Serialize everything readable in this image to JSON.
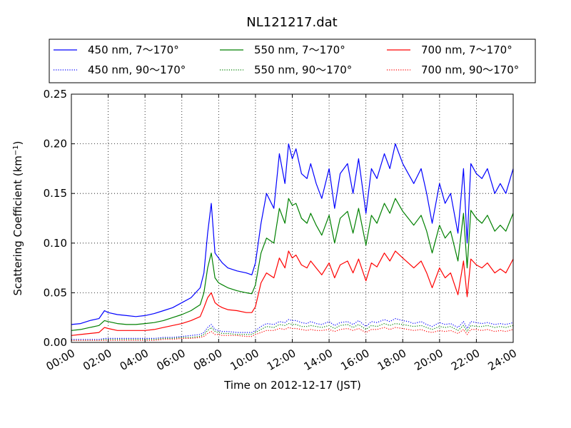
{
  "chart_data": {
    "type": "line",
    "title": "NL121217.dat",
    "xlabel": "Time on 2012-12-17 (JST)",
    "ylabel": "Scattering Coefficient (km",
    "ylabel_sup": "−1",
    "ylabel_close": ")",
    "x_unit": "hour",
    "xlim": [
      0,
      24
    ],
    "ylim": [
      0,
      0.25
    ],
    "xticks": [
      0,
      2,
      4,
      6,
      8,
      10,
      12,
      14,
      16,
      18,
      20,
      22,
      24
    ],
    "xtick_labels": [
      "00:00",
      "02:00",
      "04:00",
      "06:00",
      "08:00",
      "10:00",
      "12:00",
      "14:00",
      "16:00",
      "18:00",
      "20:00",
      "22:00",
      "24:00"
    ],
    "yticks": [
      0,
      0.05,
      0.1,
      0.15,
      0.2,
      0.25
    ],
    "ytick_labels": [
      "0.00",
      "0.05",
      "0.10",
      "0.15",
      "0.20",
      "0.25"
    ],
    "grid": true,
    "legend_position": "top",
    "x": [
      0,
      0.5,
      1,
      1.5,
      1.8,
      2,
      2.5,
      3,
      3.5,
      4,
      4.5,
      5,
      5.5,
      6,
      6.5,
      7,
      7.2,
      7.4,
      7.6,
      7.8,
      8,
      8.2,
      8.5,
      9,
      9.5,
      9.8,
      10,
      10.3,
      10.6,
      11,
      11.3,
      11.6,
      11.8,
      12,
      12.2,
      12.5,
      12.8,
      13,
      13.3,
      13.6,
      14,
      14.3,
      14.6,
      15,
      15.3,
      15.6,
      16,
      16.3,
      16.6,
      17,
      17.3,
      17.6,
      18,
      18.3,
      18.6,
      19,
      19.3,
      19.6,
      20,
      20.3,
      20.6,
      21,
      21.3,
      21.5,
      21.7,
      22,
      22.3,
      22.6,
      23,
      23.3,
      23.6,
      24
    ],
    "series": [
      {
        "name": "450 nm, 7～170°",
        "color": "#0000ff",
        "linestyle": "solid",
        "values": [
          0.018,
          0.019,
          0.022,
          0.024,
          0.032,
          0.03,
          0.028,
          0.027,
          0.026,
          0.027,
          0.029,
          0.032,
          0.035,
          0.04,
          0.045,
          0.055,
          0.07,
          0.11,
          0.14,
          0.09,
          0.085,
          0.08,
          0.075,
          0.072,
          0.07,
          0.068,
          0.08,
          0.12,
          0.15,
          0.135,
          0.19,
          0.16,
          0.2,
          0.185,
          0.195,
          0.17,
          0.165,
          0.18,
          0.16,
          0.145,
          0.175,
          0.135,
          0.17,
          0.18,
          0.15,
          0.185,
          0.13,
          0.175,
          0.165,
          0.19,
          0.175,
          0.2,
          0.18,
          0.17,
          0.16,
          0.175,
          0.15,
          0.12,
          0.16,
          0.14,
          0.15,
          0.11,
          0.175,
          0.1,
          0.18,
          0.17,
          0.165,
          0.175,
          0.15,
          0.16,
          0.15,
          0.175
        ]
      },
      {
        "name": "550 nm, 7～170°",
        "color": "#008000",
        "linestyle": "solid",
        "values": [
          0.012,
          0.013,
          0.015,
          0.017,
          0.022,
          0.021,
          0.019,
          0.018,
          0.018,
          0.019,
          0.02,
          0.022,
          0.025,
          0.028,
          0.032,
          0.038,
          0.05,
          0.075,
          0.09,
          0.065,
          0.06,
          0.058,
          0.055,
          0.052,
          0.05,
          0.049,
          0.058,
          0.09,
          0.105,
          0.1,
          0.135,
          0.12,
          0.145,
          0.138,
          0.14,
          0.125,
          0.12,
          0.13,
          0.118,
          0.108,
          0.128,
          0.1,
          0.125,
          0.132,
          0.11,
          0.135,
          0.098,
          0.128,
          0.12,
          0.14,
          0.13,
          0.145,
          0.132,
          0.125,
          0.118,
          0.128,
          0.112,
          0.09,
          0.118,
          0.105,
          0.112,
          0.082,
          0.13,
          0.075,
          0.133,
          0.125,
          0.12,
          0.128,
          0.112,
          0.118,
          0.112,
          0.13
        ]
      },
      {
        "name": "700 nm, 7～170°",
        "color": "#ff0000",
        "linestyle": "solid",
        "values": [
          0.007,
          0.008,
          0.009,
          0.01,
          0.015,
          0.014,
          0.012,
          0.012,
          0.012,
          0.012,
          0.013,
          0.015,
          0.017,
          0.019,
          0.022,
          0.026,
          0.035,
          0.045,
          0.05,
          0.04,
          0.037,
          0.035,
          0.033,
          0.032,
          0.03,
          0.03,
          0.036,
          0.06,
          0.07,
          0.065,
          0.085,
          0.075,
          0.092,
          0.085,
          0.088,
          0.078,
          0.075,
          0.082,
          0.075,
          0.068,
          0.08,
          0.065,
          0.078,
          0.082,
          0.07,
          0.084,
          0.062,
          0.08,
          0.076,
          0.09,
          0.082,
          0.092,
          0.085,
          0.08,
          0.075,
          0.082,
          0.07,
          0.055,
          0.075,
          0.065,
          0.07,
          0.048,
          0.082,
          0.046,
          0.084,
          0.078,
          0.075,
          0.08,
          0.07,
          0.074,
          0.07,
          0.084
        ]
      },
      {
        "name": "450 nm, 90～170°",
        "color": "#0000ff",
        "linestyle": "dotted",
        "values": [
          0.003,
          0.003,
          0.003,
          0.003,
          0.004,
          0.004,
          0.004,
          0.004,
          0.004,
          0.004,
          0.004,
          0.005,
          0.005,
          0.006,
          0.007,
          0.008,
          0.01,
          0.015,
          0.018,
          0.013,
          0.012,
          0.011,
          0.011,
          0.01,
          0.01,
          0.01,
          0.012,
          0.016,
          0.019,
          0.018,
          0.021,
          0.02,
          0.023,
          0.022,
          0.022,
          0.02,
          0.019,
          0.021,
          0.019,
          0.018,
          0.021,
          0.017,
          0.02,
          0.021,
          0.018,
          0.022,
          0.016,
          0.021,
          0.02,
          0.023,
          0.021,
          0.024,
          0.022,
          0.021,
          0.019,
          0.021,
          0.018,
          0.016,
          0.02,
          0.018,
          0.019,
          0.015,
          0.021,
          0.014,
          0.021,
          0.02,
          0.019,
          0.02,
          0.018,
          0.019,
          0.018,
          0.02
        ]
      },
      {
        "name": "550 nm, 90～170°",
        "color": "#008000",
        "linestyle": "dotted",
        "values": [
          0.002,
          0.002,
          0.002,
          0.002,
          0.003,
          0.003,
          0.003,
          0.003,
          0.003,
          0.003,
          0.003,
          0.004,
          0.004,
          0.005,
          0.005,
          0.006,
          0.008,
          0.012,
          0.015,
          0.011,
          0.01,
          0.009,
          0.009,
          0.008,
          0.008,
          0.008,
          0.01,
          0.013,
          0.016,
          0.015,
          0.018,
          0.017,
          0.019,
          0.018,
          0.018,
          0.016,
          0.016,
          0.017,
          0.016,
          0.015,
          0.017,
          0.014,
          0.017,
          0.018,
          0.015,
          0.018,
          0.013,
          0.017,
          0.016,
          0.019,
          0.017,
          0.019,
          0.018,
          0.017,
          0.016,
          0.017,
          0.015,
          0.013,
          0.016,
          0.015,
          0.016,
          0.012,
          0.017,
          0.011,
          0.017,
          0.016,
          0.016,
          0.017,
          0.015,
          0.016,
          0.015,
          0.017
        ]
      },
      {
        "name": "700 nm, 90～170°",
        "color": "#ff0000",
        "linestyle": "dotted",
        "values": [
          0.002,
          0.002,
          0.002,
          0.002,
          0.002,
          0.002,
          0.002,
          0.002,
          0.002,
          0.002,
          0.002,
          0.003,
          0.003,
          0.004,
          0.004,
          0.005,
          0.006,
          0.009,
          0.011,
          0.008,
          0.008,
          0.007,
          0.007,
          0.007,
          0.006,
          0.006,
          0.008,
          0.01,
          0.012,
          0.012,
          0.014,
          0.013,
          0.015,
          0.014,
          0.014,
          0.013,
          0.012,
          0.013,
          0.012,
          0.012,
          0.013,
          0.011,
          0.013,
          0.014,
          0.012,
          0.014,
          0.01,
          0.013,
          0.013,
          0.015,
          0.013,
          0.015,
          0.014,
          0.013,
          0.012,
          0.013,
          0.011,
          0.01,
          0.012,
          0.011,
          0.012,
          0.009,
          0.013,
          0.008,
          0.013,
          0.013,
          0.012,
          0.013,
          0.011,
          0.012,
          0.011,
          0.013
        ]
      }
    ]
  }
}
